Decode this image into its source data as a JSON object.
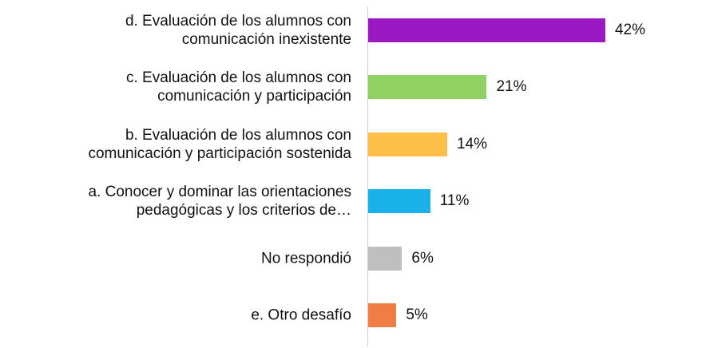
{
  "chart_data": {
    "type": "bar",
    "orientation": "horizontal",
    "categories": [
      "d. Evaluación de los alumnos con\ncomunicación inexistente",
      "c. Evaluación de los alumnos con\ncomunicación y participación",
      "b. Evaluación de los alumnos con\ncomunicación y participación sostenida",
      "a. Conocer y dominar las orientaciones\npedagógicas y los criterios de…",
      "No respondió",
      "e. Otro desafío"
    ],
    "values": [
      42,
      21,
      14,
      11,
      6,
      5
    ],
    "value_labels": [
      "42%",
      "21%",
      "14%",
      "11%",
      "6%",
      "5%"
    ],
    "colors": [
      "#9b19c2",
      "#8fd163",
      "#fdbf47",
      "#1ab0ea",
      "#bfbfbf",
      "#ef7d46"
    ]
  }
}
